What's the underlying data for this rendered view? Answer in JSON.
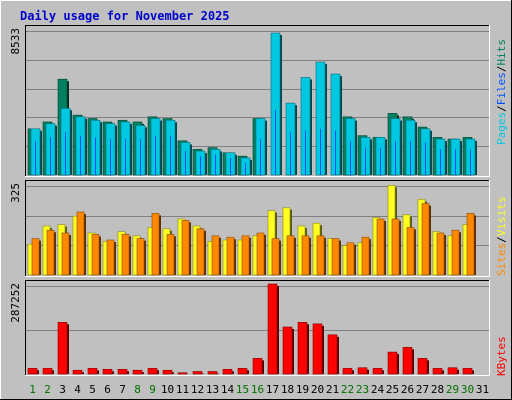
{
  "title": "Daily usage for November 2025",
  "colors": {
    "title": "#0000cc",
    "hits": "#00c8e0",
    "files": "#0050ff",
    "pages": "#008060",
    "visits": "#ffff20",
    "sites": "#ff8800",
    "kbytes": "#ff0000",
    "weekday_label": "#007000",
    "plot_bg": "#c0c0c0",
    "grid": "#808080"
  },
  "chart_data": [
    {
      "type": "bar",
      "panel": "hits-files-pages",
      "ymax_label": "8533",
      "ylim": [
        0,
        8533
      ],
      "legend": [
        "Pages",
        "Files",
        "Hits"
      ],
      "categories": [
        1,
        2,
        3,
        4,
        5,
        6,
        7,
        8,
        9,
        10,
        11,
        12,
        13,
        14,
        15,
        16,
        17,
        18,
        19,
        20,
        21,
        22,
        23,
        24,
        25,
        26,
        27,
        28,
        29,
        30,
        31
      ],
      "series": [
        {
          "name": "Hits",
          "values": [
            2700,
            3000,
            3900,
            3400,
            3200,
            3000,
            3100,
            2900,
            3300,
            3200,
            1900,
            1400,
            1500,
            1300,
            1000,
            3300,
            8300,
            4200,
            5700,
            6600,
            5900,
            3300,
            2200,
            2200,
            3300,
            3200,
            2700,
            2100,
            2100,
            2100,
            null
          ]
        },
        {
          "name": "Files",
          "values": [
            2000,
            2200,
            2500,
            2300,
            2200,
            2100,
            2100,
            2100,
            2300,
            2300,
            1400,
            1100,
            1200,
            1000,
            700,
            2100,
            3800,
            2500,
            2600,
            2700,
            2600,
            2000,
            1600,
            1600,
            2000,
            2000,
            1900,
            1500,
            1500,
            1500,
            null
          ]
        },
        {
          "name": "Pages",
          "values": [
            2700,
            3100,
            5600,
            3500,
            3300,
            3100,
            3200,
            3100,
            3400,
            3300,
            2000,
            1500,
            1600,
            1300,
            1100,
            3300,
            0,
            0,
            0,
            0,
            0,
            3400,
            2300,
            2200,
            3600,
            3400,
            2800,
            2200,
            2100,
            2200,
            null
          ]
        }
      ]
    },
    {
      "type": "bar",
      "panel": "visits-sites",
      "ymax_label": "325",
      "ylim": [
        0,
        325
      ],
      "legend": [
        "Sites",
        "Visits"
      ],
      "categories": [
        1,
        2,
        3,
        4,
        5,
        6,
        7,
        8,
        9,
        10,
        11,
        12,
        13,
        14,
        15,
        16,
        17,
        18,
        19,
        20,
        21,
        22,
        23,
        24,
        25,
        26,
        27,
        28,
        29,
        30,
        31
      ],
      "series": [
        {
          "name": "Visits",
          "values": [
            110,
            175,
            180,
            210,
            150,
            120,
            155,
            140,
            170,
            165,
            200,
            175,
            120,
            125,
            125,
            140,
            230,
            240,
            175,
            185,
            130,
            105,
            115,
            205,
            320,
            215,
            270,
            155,
            140,
            180,
            null
          ]
        },
        {
          "name": "Sites",
          "values": [
            130,
            160,
            150,
            225,
            145,
            125,
            145,
            130,
            220,
            145,
            195,
            165,
            140,
            135,
            140,
            150,
            130,
            140,
            140,
            140,
            130,
            115,
            135,
            200,
            200,
            170,
            255,
            150,
            160,
            220,
            null
          ]
        }
      ]
    },
    {
      "type": "bar",
      "panel": "kbytes",
      "ymax_label": "287252",
      "ylim": [
        0,
        287252
      ],
      "legend": [
        "KBytes"
      ],
      "categories": [
        1,
        2,
        3,
        4,
        5,
        6,
        7,
        8,
        9,
        10,
        11,
        12,
        13,
        14,
        15,
        16,
        17,
        18,
        19,
        20,
        21,
        22,
        23,
        24,
        25,
        26,
        27,
        28,
        29,
        30,
        31
      ],
      "series": [
        {
          "name": "KBytes",
          "values": [
            18000,
            18000,
            165000,
            12000,
            18000,
            15000,
            15000,
            12000,
            18000,
            12000,
            4000,
            8000,
            8000,
            15000,
            18000,
            50000,
            287252,
            150000,
            165000,
            160000,
            125000,
            18000,
            20000,
            18000,
            70000,
            85000,
            50000,
            18000,
            20000,
            18000,
            null
          ]
        }
      ]
    }
  ],
  "x_labels": [
    {
      "label": "1",
      "weekend": true
    },
    {
      "label": "2",
      "weekend": true
    },
    {
      "label": "3",
      "weekend": false
    },
    {
      "label": "4",
      "weekend": false
    },
    {
      "label": "5",
      "weekend": false
    },
    {
      "label": "6",
      "weekend": false
    },
    {
      "label": "7",
      "weekend": false
    },
    {
      "label": "8",
      "weekend": true
    },
    {
      "label": "9",
      "weekend": true
    },
    {
      "label": "10",
      "weekend": false
    },
    {
      "label": "11",
      "weekend": false
    },
    {
      "label": "12",
      "weekend": false
    },
    {
      "label": "13",
      "weekend": false
    },
    {
      "label": "14",
      "weekend": false
    },
    {
      "label": "15",
      "weekend": true
    },
    {
      "label": "16",
      "weekend": true
    },
    {
      "label": "17",
      "weekend": false
    },
    {
      "label": "18",
      "weekend": false
    },
    {
      "label": "19",
      "weekend": false
    },
    {
      "label": "20",
      "weekend": false
    },
    {
      "label": "21",
      "weekend": false
    },
    {
      "label": "22",
      "weekend": true
    },
    {
      "label": "23",
      "weekend": true
    },
    {
      "label": "24",
      "weekend": false
    },
    {
      "label": "25",
      "weekend": false
    },
    {
      "label": "26",
      "weekend": false
    },
    {
      "label": "27",
      "weekend": false
    },
    {
      "label": "28",
      "weekend": false
    },
    {
      "label": "29",
      "weekend": true
    },
    {
      "label": "30",
      "weekend": true
    },
    {
      "label": "31",
      "weekend": false
    }
  ],
  "side_labels": {
    "top": [
      "Pages",
      "/",
      "Files",
      "/",
      "Hits"
    ],
    "mid": [
      "Sites",
      "/",
      "Visits"
    ],
    "bottom": [
      "KBytes"
    ]
  }
}
